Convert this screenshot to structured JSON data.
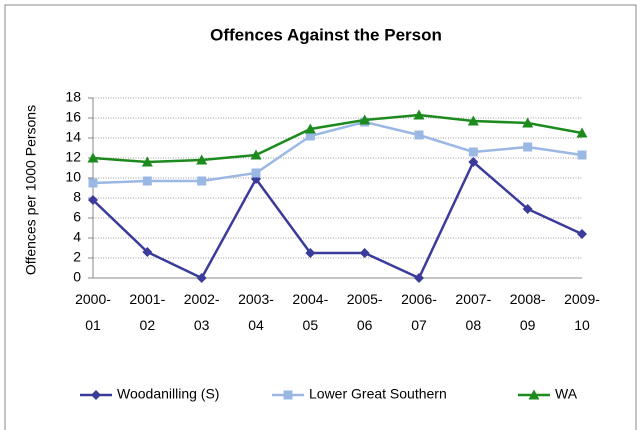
{
  "chart_data": {
    "type": "line",
    "title": "Offences Against the Person",
    "y_label": "Offences per 1000 Persons",
    "categories": [
      "2000-\n01",
      "2001-\n02",
      "2002-\n03",
      "2003-\n04",
      "2004-\n05",
      "2005-\n06",
      "2006-\n07",
      "2007-\n08",
      "2008-\n09",
      "2009-\n10"
    ],
    "series": [
      {
        "name": "Woodanilling (S)",
        "color": "#3b3b9c",
        "marker": "diamond",
        "values": [
          7.8,
          2.6,
          0,
          9.9,
          2.5,
          2.5,
          0,
          11.6,
          6.9,
          4.4
        ]
      },
      {
        "name": "Lower Great Southern",
        "color": "#9bb8e4",
        "marker": "square",
        "values": [
          9.5,
          9.7,
          9.7,
          10.5,
          14.2,
          15.6,
          14.3,
          12.6,
          13.1,
          12.3
        ]
      },
      {
        "name": "WA",
        "color": "#1d8a1d",
        "marker": "triangle",
        "values": [
          12.0,
          11.6,
          11.8,
          12.3,
          14.9,
          15.8,
          16.3,
          15.7,
          15.5,
          14.5
        ]
      }
    ],
    "ylim": [
      0,
      18
    ],
    "yticks": [
      0,
      2,
      4,
      6,
      8,
      10,
      12,
      14,
      16,
      18
    ],
    "grid": true,
    "legend": "bottom"
  }
}
